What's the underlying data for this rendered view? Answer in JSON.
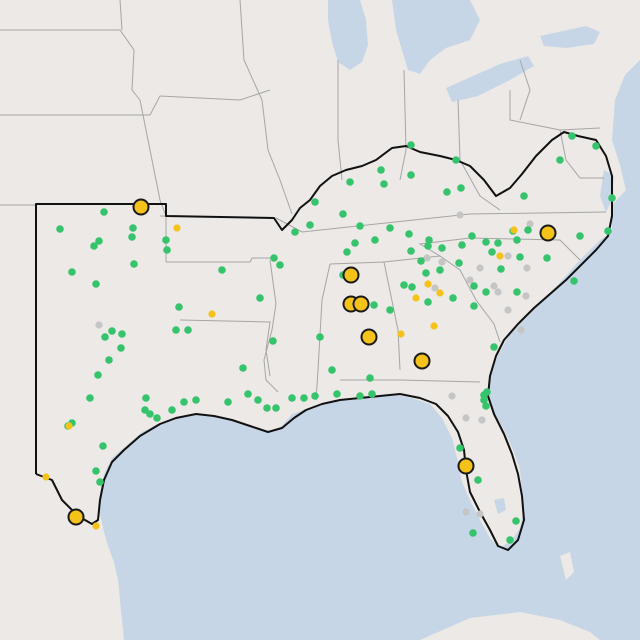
{
  "map": {
    "colors": {
      "land": "#ece9e6",
      "water": "#c6d6e6",
      "state_line": "#9e9e9e",
      "region_outline": "#111111",
      "green_marker": "#35c46b",
      "yellow_marker": "#f5c21a",
      "gray_marker": "#c5c5c5",
      "large_marker_stroke": "#1a1a1a"
    },
    "marker_legend": {
      "green": "small-green-dot",
      "yellow": "small-yellow-dot",
      "gray": "small-gray-dot",
      "large": "large-yellow-circle"
    }
  }
}
